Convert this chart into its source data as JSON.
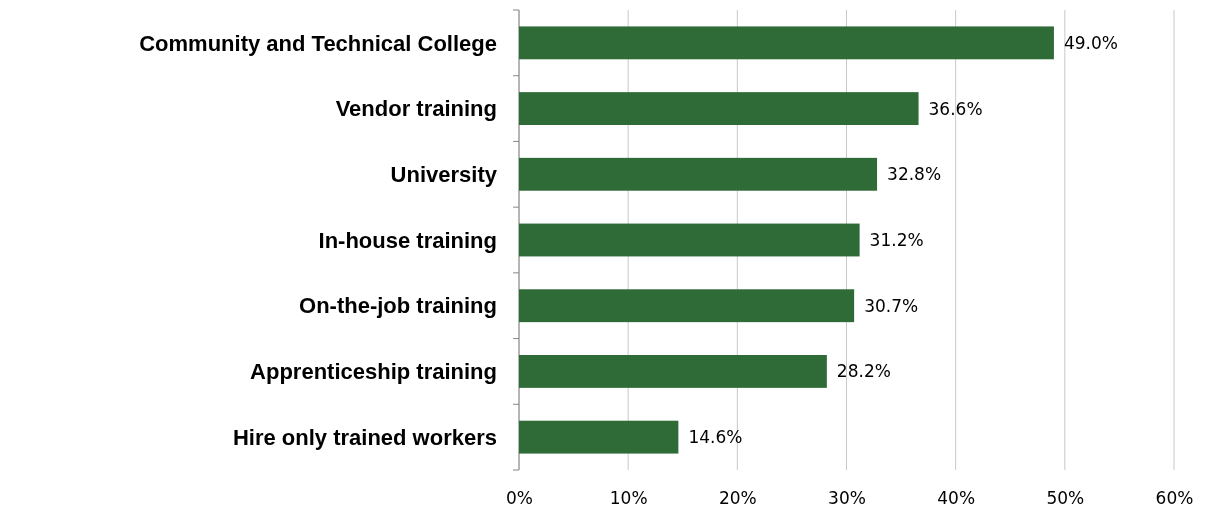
{
  "chart_data": {
    "type": "bar",
    "orientation": "horizontal",
    "categories": [
      "Community and Technical College",
      "Vendor training",
      "University",
      "In-house training",
      "On-the-job training",
      "Apprenticeship training",
      "Hire only trained workers"
    ],
    "values": [
      49.0,
      36.6,
      32.8,
      31.2,
      30.7,
      28.2,
      14.6
    ],
    "value_labels": [
      "49.0%",
      "36.6%",
      "32.8%",
      "31.2%",
      "30.7%",
      "28.2%",
      "14.6%"
    ],
    "color": "#2e6b37",
    "xlim": [
      0,
      60
    ],
    "xticks": [
      {
        "value": 0,
        "label": "0%"
      },
      {
        "value": 10,
        "label": "10%"
      },
      {
        "value": 20,
        "label": "20%"
      },
      {
        "value": 30,
        "label": "30%"
      },
      {
        "value": 40,
        "label": "40%"
      },
      {
        "value": 50,
        "label": "50%"
      },
      {
        "value": 60,
        "label": "60%"
      }
    ],
    "grid": "x"
  }
}
